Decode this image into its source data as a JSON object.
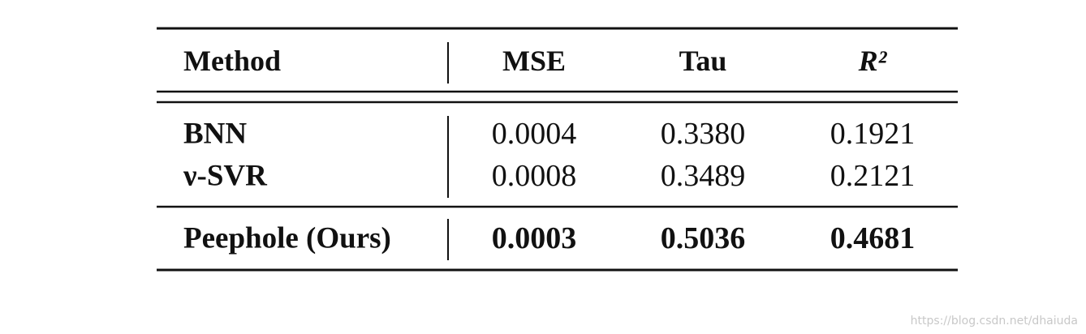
{
  "table": {
    "header": [
      "Method",
      "MSE",
      "Tau",
      "R²"
    ],
    "rows": [
      [
        "BNN",
        "0.0004",
        "0.3380",
        "0.1921"
      ],
      [
        "ν-SVR",
        "0.0008",
        "0.3489",
        "0.2121"
      ],
      [
        "Peephole (Ours)",
        "0.0003",
        "0.5036",
        "0.4681"
      ]
    ]
  },
  "watermark": "https://blog.csdn.net/dhaiuda"
}
